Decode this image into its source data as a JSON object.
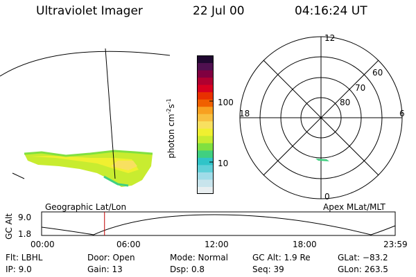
{
  "header": {
    "instrument": "Ultraviolet Imager",
    "date": "22 Jul 00",
    "time": "04:16:24 UT"
  },
  "colorbar": {
    "label": "photon cm",
    "label_exp1": "-2",
    "label_mid": "s",
    "label_exp2": "-1",
    "ticks": [
      "100",
      "10"
    ],
    "colors": [
      "#e8eef0",
      "#c8e4ec",
      "#a0dce8",
      "#60d0d8",
      "#30c4c8",
      "#40d080",
      "#80e040",
      "#c8ec30",
      "#f0f030",
      "#f8e060",
      "#f8c040",
      "#f8a020",
      "#f06000",
      "#e83000",
      "#d80020",
      "#b00030",
      "#800040",
      "#501050",
      "#200830"
    ]
  },
  "polar": {
    "mlt_top": "12",
    "mlt_left": "18",
    "mlt_right": "6",
    "mlt_bottom": "0",
    "lat_labels": [
      "60",
      "70",
      "80"
    ]
  },
  "altitude_plot": {
    "ylabel": "GC Alt",
    "yticks": [
      "9.0",
      "1.8"
    ],
    "left_title": "Geographic Lat/Lon",
    "right_title": "Apex MLat/MLT",
    "xticks": [
      "00:00",
      "06:00",
      "12:00",
      "18:00",
      "23:59"
    ],
    "marker_time_hours": 4.27
  },
  "info": {
    "flt": "Flt: LBHL",
    "ip": "IP:  9.0",
    "door": "Door: Open",
    "gain": "Gain: 13",
    "mode": "Mode: Normal",
    "dsp": "Dsp:     0.8",
    "gcalt": "GC Alt: 1.9 Re",
    "seq": "Seq: 39",
    "glat": "GLat: −83.2",
    "glon": "GLon: 263.5"
  }
}
